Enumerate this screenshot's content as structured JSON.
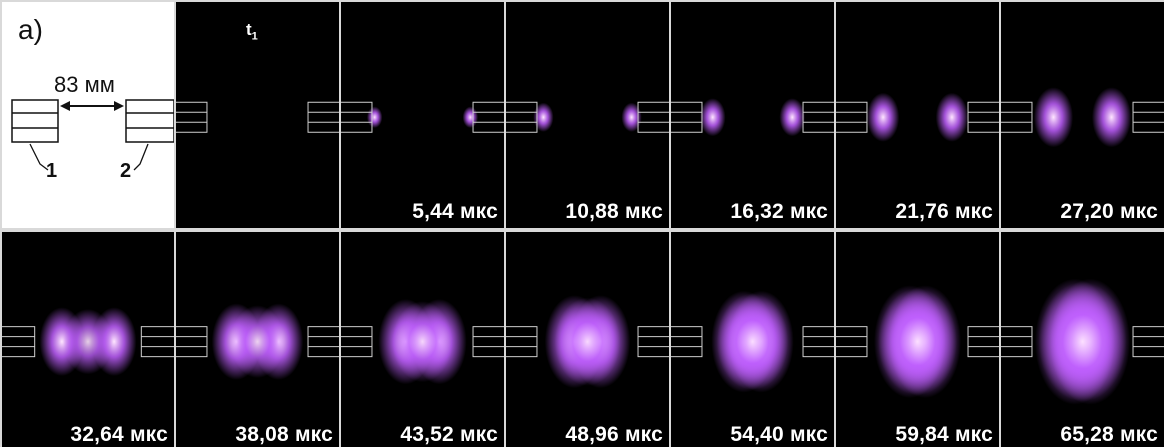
{
  "panel_label": "a)",
  "distance_label": "83 мм",
  "electrode_labels": [
    "1",
    "2"
  ],
  "time_label": {
    "base": "t",
    "sub": "1"
  },
  "frames": [
    {
      "time": "5,44 мкс",
      "level": 0.05
    },
    {
      "time": "10,88 мкс",
      "level": 0.12
    },
    {
      "time": "16,32 мкс",
      "level": 0.2
    },
    {
      "time": "21,76 мкс",
      "level": 0.3
    },
    {
      "time": "27,20 мкс",
      "level": 0.4
    },
    {
      "time": "32,64 мкс",
      "level": 0.48
    },
    {
      "time": "38,08 мкс",
      "level": 0.55
    },
    {
      "time": "43,52 мкс",
      "level": 0.63
    },
    {
      "time": "48,96 мкс",
      "level": 0.7
    },
    {
      "time": "54,40 мкс",
      "level": 0.78
    },
    {
      "time": "59,84 мкс",
      "level": 0.88
    },
    {
      "time": "65,28 мкс",
      "level": 1.0
    }
  ],
  "colors": {
    "plasma": "#c060ff",
    "plasma_core": "#ffe6ff",
    "electrode": "#cfcfcf"
  }
}
